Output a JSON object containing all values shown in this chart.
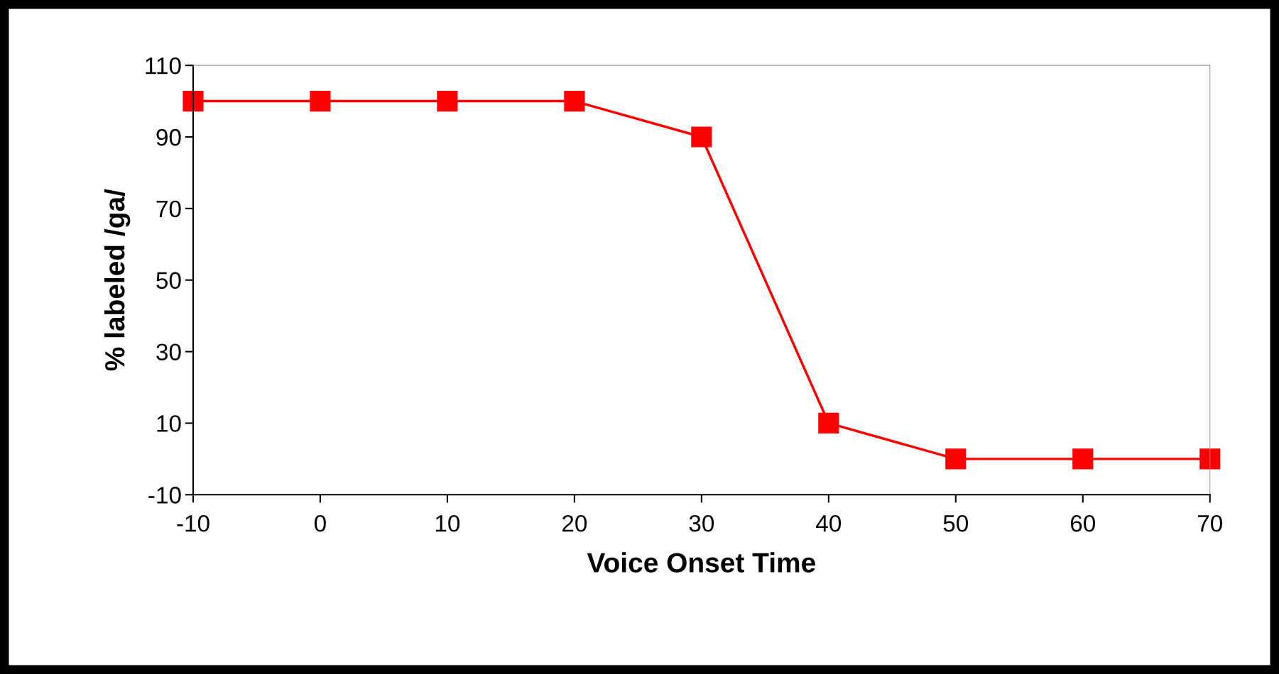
{
  "chart_data": {
    "type": "line",
    "xlabel": "Voice Onset Time",
    "ylabel": "% labeled /ga/",
    "x": [
      -10,
      0,
      10,
      20,
      30,
      40,
      50,
      60,
      70
    ],
    "series": [
      {
        "color": "#ff0000",
        "values": [
          100,
          100,
          100,
          100,
          90,
          10,
          0,
          0,
          0
        ]
      }
    ],
    "xlim": [
      -10,
      70
    ],
    "xticks": [
      -10,
      0,
      10,
      20,
      30,
      40,
      50,
      60,
      70
    ],
    "ylim": [
      -10,
      110
    ],
    "yticks": [
      -10,
      10,
      30,
      50,
      70,
      90,
      110
    ],
    "grid": false,
    "legend": false,
    "marker": "square",
    "line_style": "solid"
  }
}
